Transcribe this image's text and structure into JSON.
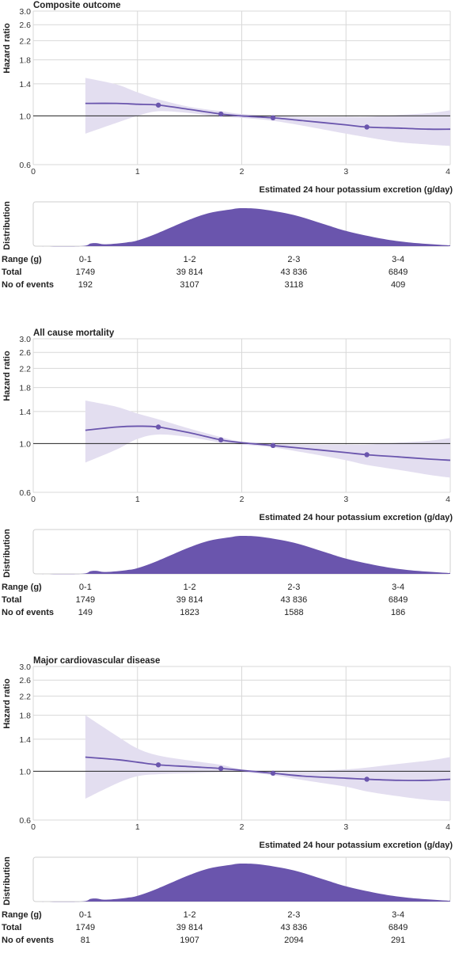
{
  "chart_data": [
    {
      "type": "line",
      "title": "Composite outcome",
      "ylabel": "Hazard ratio",
      "xlabel": "Estimated 24 hour potassium excretion (g/day)",
      "y_scale": "log",
      "ylim": [
        0.6,
        3.0
      ],
      "yticks": [
        "0.6",
        "1.0",
        "1.4",
        "1.8",
        "2.2",
        "2.6",
        "3.0"
      ],
      "xlim": [
        0,
        4
      ],
      "xticks": [
        "0",
        "1",
        "2",
        "3",
        "4"
      ],
      "reference_line": 1.0,
      "series": [
        {
          "x": [
            0.5,
            0.8,
            1.0,
            1.2,
            1.5,
            1.8,
            2.0,
            2.3,
            2.6,
            3.0,
            3.2,
            3.5,
            3.8,
            4.0
          ],
          "y": [
            1.14,
            1.14,
            1.13,
            1.12,
            1.07,
            1.02,
            1.0,
            0.98,
            0.95,
            0.91,
            0.89,
            0.88,
            0.87,
            0.87
          ],
          "lower": [
            0.83,
            0.93,
            1.0,
            1.05,
            1.03,
            0.99,
            0.98,
            0.95,
            0.9,
            0.83,
            0.8,
            0.76,
            0.74,
            0.73
          ],
          "upper": [
            1.49,
            1.39,
            1.28,
            1.19,
            1.1,
            1.05,
            1.02,
            1.0,
            0.99,
            0.99,
            0.99,
            1.01,
            1.03,
            1.06
          ],
          "markers_x": [
            1.2,
            1.8,
            2.3,
            3.2
          ]
        }
      ],
      "distribution": {
        "label": "Distribution",
        "x": [
          0.0,
          0.45,
          0.55,
          0.6,
          0.7,
          0.9,
          1.0,
          1.2,
          1.5,
          1.7,
          1.9,
          2.0,
          2.2,
          2.5,
          2.8,
          3.0,
          3.3,
          3.6,
          4.0
        ],
        "density": [
          0,
          0,
          0.07,
          0.08,
          0.05,
          0.1,
          0.15,
          0.35,
          0.7,
          0.88,
          0.97,
          1.0,
          0.97,
          0.82,
          0.57,
          0.4,
          0.22,
          0.1,
          0.02
        ]
      },
      "table": {
        "row_labels": [
          "Range (g)",
          "Total",
          "No of events"
        ],
        "ranges": [
          "0-1",
          "1-2",
          "2-3",
          "3-4"
        ],
        "totals": [
          "1749",
          "39 814",
          "43 836",
          "6849"
        ],
        "events": [
          "192",
          "3107",
          "3118",
          "409"
        ]
      }
    },
    {
      "type": "line",
      "title": "All cause mortality",
      "ylabel": "Hazard ratio",
      "xlabel": "Estimated 24 hour potassium excretion (g/day)",
      "y_scale": "log",
      "ylim": [
        0.6,
        3.0
      ],
      "yticks": [
        "0.6",
        "1.0",
        "1.4",
        "1.8",
        "2.2",
        "2.6",
        "3.0"
      ],
      "xlim": [
        0,
        4
      ],
      "xticks": [
        "0",
        "1",
        "2",
        "3",
        "4"
      ],
      "reference_line": 1.0,
      "series": [
        {
          "x": [
            0.5,
            0.8,
            1.0,
            1.2,
            1.5,
            1.8,
            2.0,
            2.3,
            2.6,
            3.0,
            3.2,
            3.5,
            3.8,
            4.0
          ],
          "y": [
            1.15,
            1.19,
            1.2,
            1.19,
            1.12,
            1.04,
            1.01,
            0.98,
            0.95,
            0.91,
            0.89,
            0.87,
            0.85,
            0.84
          ],
          "lower": [
            0.82,
            0.94,
            1.05,
            1.1,
            1.07,
            1.01,
            0.99,
            0.96,
            0.91,
            0.84,
            0.8,
            0.76,
            0.72,
            0.7
          ],
          "upper": [
            1.57,
            1.47,
            1.37,
            1.29,
            1.17,
            1.07,
            1.02,
            1.0,
            0.99,
            0.99,
            0.99,
            1.01,
            1.03,
            1.06
          ],
          "markers_x": [
            1.2,
            1.8,
            2.3,
            3.2
          ]
        }
      ],
      "distribution": {
        "label": "Distribution",
        "x": [
          0.0,
          0.45,
          0.55,
          0.6,
          0.7,
          0.9,
          1.0,
          1.2,
          1.5,
          1.7,
          1.9,
          2.0,
          2.2,
          2.5,
          2.8,
          3.0,
          3.3,
          3.6,
          4.0
        ],
        "density": [
          0,
          0,
          0.07,
          0.08,
          0.05,
          0.1,
          0.15,
          0.35,
          0.7,
          0.88,
          0.97,
          1.0,
          0.97,
          0.82,
          0.57,
          0.4,
          0.22,
          0.1,
          0.02
        ]
      },
      "table": {
        "row_labels": [
          "Range (g)",
          "Total",
          "No of events"
        ],
        "ranges": [
          "0-1",
          "1-2",
          "2-3",
          "3-4"
        ],
        "totals": [
          "1749",
          "39 814",
          "43 836",
          "6849"
        ],
        "events": [
          "149",
          "1823",
          "1588",
          "186"
        ]
      }
    },
    {
      "type": "line",
      "title": "Major cardiovascular disease",
      "ylabel": "Hazard ratio",
      "xlabel": "Estimated 24 hour potassium excretion (g/day)",
      "y_scale": "log",
      "ylim": [
        0.6,
        3.0
      ],
      "yticks": [
        "0.6",
        "1.0",
        "1.4",
        "1.8",
        "2.2",
        "2.6",
        "3.0"
      ],
      "xlim": [
        0,
        4
      ],
      "xticks": [
        "0",
        "1",
        "2",
        "3",
        "4"
      ],
      "reference_line": 1.0,
      "series": [
        {
          "x": [
            0.5,
            0.8,
            1.0,
            1.2,
            1.5,
            1.8,
            2.0,
            2.3,
            2.6,
            3.0,
            3.2,
            3.5,
            3.8,
            4.0
          ],
          "y": [
            1.16,
            1.13,
            1.1,
            1.07,
            1.05,
            1.03,
            1.01,
            0.98,
            0.95,
            0.93,
            0.92,
            0.91,
            0.91,
            0.92
          ],
          "lower": [
            0.75,
            0.88,
            0.95,
            0.97,
            0.98,
            0.99,
            0.99,
            0.96,
            0.91,
            0.85,
            0.81,
            0.77,
            0.74,
            0.73
          ],
          "upper": [
            1.8,
            1.45,
            1.27,
            1.18,
            1.12,
            1.07,
            1.02,
            1.0,
            1.0,
            1.02,
            1.04,
            1.08,
            1.12,
            1.16
          ],
          "markers_x": [
            1.2,
            1.8,
            2.3,
            3.2
          ]
        }
      ],
      "distribution": {
        "label": "Distribution",
        "x": [
          0.0,
          0.45,
          0.55,
          0.6,
          0.7,
          0.9,
          1.0,
          1.2,
          1.5,
          1.7,
          1.9,
          2.0,
          2.2,
          2.5,
          2.8,
          3.0,
          3.3,
          3.6,
          4.0
        ],
        "density": [
          0,
          0,
          0.07,
          0.08,
          0.05,
          0.1,
          0.15,
          0.35,
          0.7,
          0.88,
          0.97,
          1.0,
          0.97,
          0.82,
          0.57,
          0.4,
          0.22,
          0.1,
          0.02
        ]
      },
      "table": {
        "row_labels": [
          "Range (g)",
          "Total",
          "No of events"
        ],
        "ranges": [
          "0-1",
          "1-2",
          "2-3",
          "3-4"
        ],
        "totals": [
          "1749",
          "39 814",
          "43 836",
          "6849"
        ],
        "events": [
          "81",
          "1907",
          "2094",
          "291"
        ]
      }
    }
  ],
  "colors": {
    "line": "#6a55ad",
    "ci_band": "#e3def0",
    "distribution_fill": "#6a55ad",
    "grid": "#d8d8d8",
    "reference_line": "#222222"
  }
}
